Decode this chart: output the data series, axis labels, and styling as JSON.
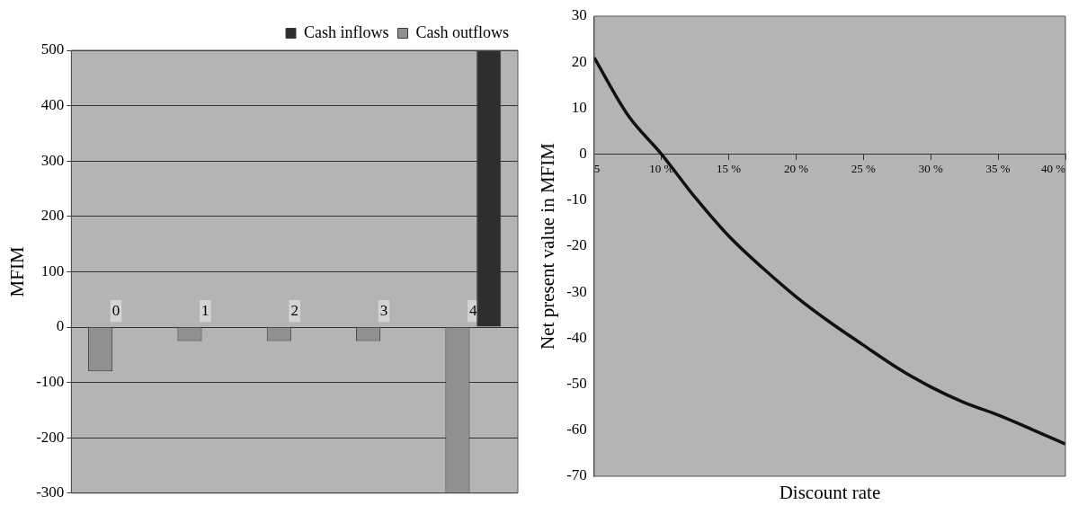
{
  "chart_data": [
    {
      "type": "bar",
      "ylabel": "MFIM",
      "categories": [
        "0",
        "1",
        "2",
        "3",
        "4"
      ],
      "series": [
        {
          "name": "Cash outflows",
          "color": "#909090",
          "values": [
            -80,
            -25,
            -25,
            -25,
            -300
          ]
        },
        {
          "name": "Cash inflows",
          "color": "#2e2e2e",
          "values": [
            null,
            null,
            null,
            null,
            500
          ]
        }
      ],
      "ylim": [
        -300,
        500
      ],
      "yticks": [
        -300,
        -200,
        -100,
        0,
        100,
        200,
        300,
        400,
        500
      ],
      "grid": "y",
      "legend": "top right"
    },
    {
      "type": "line",
      "xlabel": "Discount rate",
      "ylabel": "Net present value in MFIM",
      "x": [
        5,
        7.5,
        10,
        12.5,
        15,
        17.5,
        20,
        22.5,
        25,
        27.5,
        30,
        32.5,
        35,
        37.5,
        40
      ],
      "series": [
        {
          "color": "#111111",
          "values": [
            21,
            8.5,
            0,
            -9.4,
            -17.8,
            -24.7,
            -31,
            -36.5,
            -41.5,
            -46.4,
            -50.6,
            -54,
            -56.7,
            -59.8,
            -63
          ]
        }
      ],
      "xlim": [
        5,
        40
      ],
      "xticks": [
        {
          "value": 5,
          "label": "5"
        },
        {
          "value": 10,
          "label": "10 %"
        },
        {
          "value": 15,
          "label": "15 %"
        },
        {
          "value": 20,
          "label": "20 %"
        },
        {
          "value": 25,
          "label": "25 %"
        },
        {
          "value": 30,
          "label": "30 %"
        },
        {
          "value": 35,
          "label": "35 %"
        },
        {
          "value": 40,
          "label": "40 %"
        }
      ],
      "ylim": [
        -70,
        30
      ],
      "yticks": [
        -70,
        -60,
        -50,
        -40,
        -30,
        -20,
        -10,
        0,
        10,
        20,
        30
      ],
      "marker": "none",
      "legend": false
    }
  ]
}
